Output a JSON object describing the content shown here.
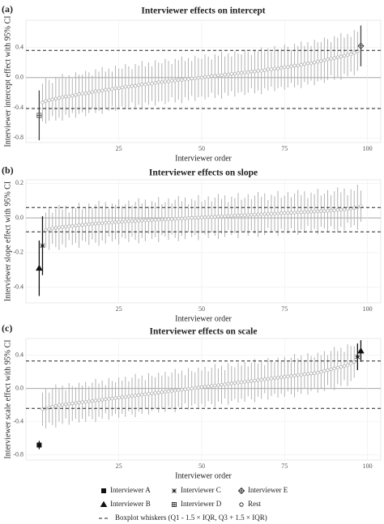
{
  "chart_data": [
    {
      "type": "errorbar",
      "label": "(a)",
      "title": "Interviewer effects on intercept",
      "xlabel": "Interviewer order",
      "ylabel": "Interviewer intercept effect with 95% CI",
      "xlim": [
        -3,
        104
      ],
      "ylim": [
        -0.86,
        0.76
      ],
      "xticks": [
        25,
        50,
        75,
        100
      ],
      "yticks": [
        -0.8,
        -0.4,
        {
          "value": 0,
          "label": "0.0"
        },
        0.4
      ],
      "grid": true,
      "hlines": [
        0.36,
        -0.41
      ],
      "series": [
        {
          "name": "Interviewer D",
          "color": "#444",
          "x": [
            1
          ],
          "values": [
            -0.5
          ],
          "errors": [
            0.33
          ]
        },
        {
          "name": "Interviewer E",
          "color": "#444",
          "x": [
            98
          ],
          "values": [
            0.42
          ],
          "errors": [
            0.27
          ]
        },
        {
          "name": "Rest",
          "color": "#b3b3b3",
          "x": [
            2,
            3,
            4,
            5,
            6,
            7,
            8,
            9,
            10,
            11,
            12,
            13,
            14,
            15,
            16,
            17,
            18,
            19,
            20,
            21,
            22,
            23,
            24,
            25,
            26,
            27,
            28,
            29,
            30,
            31,
            32,
            33,
            34,
            35,
            36,
            37,
            38,
            39,
            40,
            41,
            42,
            43,
            44,
            45,
            46,
            47,
            48,
            49,
            50,
            51,
            52,
            53,
            54,
            55,
            56,
            57,
            58,
            59,
            60,
            61,
            62,
            63,
            64,
            65,
            66,
            67,
            68,
            69,
            70,
            71,
            72,
            73,
            74,
            75,
            76,
            77,
            78,
            79,
            80,
            81,
            82,
            83,
            84,
            85,
            86,
            87,
            88,
            89,
            90,
            91,
            92,
            93,
            94,
            95,
            96,
            97
          ],
          "values": [
            -0.33,
            -0.31,
            -0.3,
            -0.29,
            -0.28,
            -0.27,
            -0.26,
            -0.25,
            -0.25,
            -0.24,
            -0.23,
            -0.22,
            -0.21,
            -0.21,
            -0.2,
            -0.19,
            -0.18,
            -0.18,
            -0.17,
            -0.16,
            -0.16,
            -0.15,
            -0.14,
            -0.14,
            -0.13,
            -0.12,
            -0.12,
            -0.11,
            -0.11,
            -0.1,
            -0.09,
            -0.09,
            -0.08,
            -0.08,
            -0.07,
            -0.06,
            -0.06,
            -0.05,
            -0.05,
            -0.04,
            -0.04,
            -0.03,
            -0.03,
            -0.02,
            -0.02,
            -0.01,
            -0.01,
            0,
            0,
            0.01,
            0.01,
            0.02,
            0.02,
            0.03,
            0.03,
            0.04,
            0.04,
            0.05,
            0.05,
            0.06,
            0.06,
            0.07,
            0.07,
            0.08,
            0.08,
            0.09,
            0.09,
            0.1,
            0.11,
            0.11,
            0.12,
            0.12,
            0.13,
            0.14,
            0.14,
            0.15,
            0.16,
            0.16,
            0.17,
            0.18,
            0.19,
            0.19,
            0.2,
            0.21,
            0.22,
            0.23,
            0.24,
            0.25,
            0.26,
            0.27,
            0.28,
            0.29,
            0.3,
            0.31,
            0.33,
            0.35
          ],
          "errors": [
            0.25,
            0.3,
            0.27,
            0.22,
            0.29,
            0.26,
            0.31,
            0.24,
            0.28,
            0.23,
            0.3,
            0.26,
            0.25,
            0.3,
            0.27,
            0.22,
            0.29,
            0.26,
            0.31,
            0.24,
            0.28,
            0.23,
            0.3,
            0.26,
            0.25,
            0.3,
            0.27,
            0.22,
            0.29,
            0.26,
            0.31,
            0.24,
            0.28,
            0.23,
            0.3,
            0.26,
            0.25,
            0.3,
            0.27,
            0.22,
            0.29,
            0.26,
            0.31,
            0.24,
            0.28,
            0.23,
            0.3,
            0.26,
            0.25,
            0.3,
            0.27,
            0.22,
            0.29,
            0.26,
            0.31,
            0.24,
            0.28,
            0.23,
            0.3,
            0.26,
            0.25,
            0.3,
            0.27,
            0.22,
            0.29,
            0.26,
            0.31,
            0.24,
            0.28,
            0.23,
            0.3,
            0.26,
            0.25,
            0.3,
            0.27,
            0.22,
            0.29,
            0.26,
            0.31,
            0.24,
            0.28,
            0.23,
            0.3,
            0.26,
            0.25,
            0.3,
            0.27,
            0.22,
            0.29,
            0.26,
            0.31,
            0.24,
            0.28,
            0.23,
            0.3,
            0.26
          ]
        }
      ]
    },
    {
      "type": "errorbar",
      "label": "(b)",
      "title": "Interviewer effects on slope",
      "xlabel": "Interviewer order",
      "ylabel": "Interviewer slope effect with 95% CI",
      "xlim": [
        -3,
        104
      ],
      "ylim": [
        -0.49,
        0.22
      ],
      "xticks": [
        25,
        50,
        75,
        100
      ],
      "yticks": [
        -0.4,
        -0.2,
        {
          "value": 0,
          "label": "0.0"
        },
        0.2
      ],
      "grid": true,
      "hlines": [
        0.06,
        -0.08
      ],
      "series": [
        {
          "name": "Interviewer B",
          "color": "#111",
          "x": [
            1
          ],
          "values": [
            -0.29
          ],
          "errors": [
            0.16
          ]
        },
        {
          "name": "Interviewer C",
          "color": "#111",
          "x": [
            2
          ],
          "values": [
            -0.16
          ],
          "errors": [
            0.17
          ]
        },
        {
          "name": "Rest",
          "color": "#b3b3b3",
          "x": [
            3,
            4,
            5,
            6,
            7,
            8,
            9,
            10,
            11,
            12,
            13,
            14,
            15,
            16,
            17,
            18,
            19,
            20,
            21,
            22,
            23,
            24,
            25,
            26,
            27,
            28,
            29,
            30,
            31,
            32,
            33,
            34,
            35,
            36,
            37,
            38,
            39,
            40,
            41,
            42,
            43,
            44,
            45,
            46,
            47,
            48,
            49,
            50,
            51,
            52,
            53,
            54,
            55,
            56,
            57,
            58,
            59,
            60,
            61,
            62,
            63,
            64,
            65,
            66,
            67,
            68,
            69,
            70,
            71,
            72,
            73,
            74,
            75,
            76,
            77,
            78,
            79,
            80,
            81,
            82,
            83,
            84,
            85,
            86,
            87,
            88,
            89,
            90,
            91,
            92,
            93,
            94,
            95,
            96,
            97,
            98
          ],
          "values": [
            -0.07,
            -0.065,
            -0.06,
            -0.058,
            -0.055,
            -0.052,
            -0.05,
            -0.048,
            -0.046,
            -0.044,
            -0.042,
            -0.04,
            -0.038,
            -0.036,
            -0.034,
            -0.033,
            -0.031,
            -0.03,
            -0.028,
            -0.027,
            -0.026,
            -0.024,
            -0.023,
            -0.022,
            -0.02,
            -0.019,
            -0.018,
            -0.017,
            -0.016,
            -0.015,
            -0.014,
            -0.013,
            -0.012,
            -0.011,
            -0.01,
            -0.009,
            -0.008,
            -0.007,
            -0.006,
            -0.005,
            -0.004,
            -0.003,
            -0.002,
            -0.001,
            0,
            0.001,
            0.002,
            0.003,
            0.004,
            0.005,
            0.006,
            0.007,
            0.008,
            0.009,
            0.01,
            0.011,
            0.012,
            0.013,
            0.014,
            0.015,
            0.016,
            0.017,
            0.018,
            0.019,
            0.02,
            0.021,
            0.022,
            0.023,
            0.024,
            0.025,
            0.026,
            0.027,
            0.028,
            0.029,
            0.03,
            0.031,
            0.032,
            0.033,
            0.034,
            0.035,
            0.036,
            0.037,
            0.038,
            0.039,
            0.04,
            0.041,
            0.042,
            0.044,
            0.046,
            0.048,
            0.05,
            0.052,
            0.055,
            0.058,
            0.062,
            0.068
          ],
          "errors": [
            0.1,
            0.12,
            0.09,
            0.11,
            0.13,
            0.1,
            0.12,
            0.08,
            0.11,
            0.1,
            0.13,
            0.09,
            0.1,
            0.12,
            0.09,
            0.11,
            0.13,
            0.1,
            0.12,
            0.08,
            0.11,
            0.1,
            0.13,
            0.09,
            0.1,
            0.12,
            0.09,
            0.11,
            0.13,
            0.1,
            0.12,
            0.08,
            0.11,
            0.1,
            0.13,
            0.09,
            0.1,
            0.12,
            0.09,
            0.11,
            0.13,
            0.1,
            0.12,
            0.08,
            0.11,
            0.1,
            0.13,
            0.09,
            0.1,
            0.12,
            0.09,
            0.11,
            0.13,
            0.1,
            0.12,
            0.08,
            0.11,
            0.1,
            0.13,
            0.09,
            0.1,
            0.12,
            0.09,
            0.11,
            0.13,
            0.1,
            0.12,
            0.08,
            0.11,
            0.1,
            0.13,
            0.09,
            0.1,
            0.12,
            0.09,
            0.11,
            0.13,
            0.1,
            0.12,
            0.08,
            0.11,
            0.1,
            0.13,
            0.09,
            0.1,
            0.12,
            0.09,
            0.11,
            0.13,
            0.1,
            0.12,
            0.08,
            0.11,
            0.1,
            0.13,
            0.09
          ]
        }
      ]
    },
    {
      "type": "errorbar",
      "label": "(c)",
      "title": "Interviewer effects on scale",
      "xlabel": "Interviewer order",
      "ylabel": "Interviewer scale effect with 95% CI",
      "xlim": [
        -3,
        104
      ],
      "ylim": [
        -0.86,
        0.6
      ],
      "xticks": [
        25,
        50,
        75,
        100
      ],
      "yticks": [
        -0.8,
        -0.4,
        {
          "value": 0,
          "label": "0.0"
        },
        0.4
      ],
      "grid": true,
      "hlines": [
        0.33,
        -0.24
      ],
      "series": [
        {
          "name": "Interviewer A",
          "color": "#111",
          "x": [
            1
          ],
          "values": [
            -0.68
          ],
          "errors": [
            0.05
          ]
        },
        {
          "name": "Interviewer C",
          "color": "#111",
          "x": [
            97
          ],
          "values": [
            0.38
          ],
          "errors": [
            0.16
          ]
        },
        {
          "name": "Interviewer B",
          "color": "#111",
          "x": [
            98
          ],
          "values": [
            0.45
          ],
          "errors": [
            0.13
          ]
        },
        {
          "name": "Rest",
          "color": "#b3b3b3",
          "x": [
            2,
            3,
            4,
            5,
            6,
            7,
            8,
            9,
            10,
            11,
            12,
            13,
            14,
            15,
            16,
            17,
            18,
            19,
            20,
            21,
            22,
            23,
            24,
            25,
            26,
            27,
            28,
            29,
            30,
            31,
            32,
            33,
            34,
            35,
            36,
            37,
            38,
            39,
            40,
            41,
            42,
            43,
            44,
            45,
            46,
            47,
            48,
            49,
            50,
            51,
            52,
            53,
            54,
            55,
            56,
            57,
            58,
            59,
            60,
            61,
            62,
            63,
            64,
            65,
            66,
            67,
            68,
            69,
            70,
            71,
            72,
            73,
            74,
            75,
            76,
            77,
            78,
            79,
            80,
            81,
            82,
            83,
            84,
            85,
            86,
            87,
            88,
            89,
            90,
            91,
            92,
            93,
            94,
            95,
            96
          ],
          "values": [
            -0.25,
            -0.24,
            -0.23,
            -0.22,
            -0.21,
            -0.2,
            -0.195,
            -0.19,
            -0.185,
            -0.18,
            -0.175,
            -0.17,
            -0.165,
            -0.16,
            -0.155,
            -0.15,
            -0.145,
            -0.14,
            -0.135,
            -0.13,
            -0.125,
            -0.12,
            -0.115,
            -0.11,
            -0.105,
            -0.1,
            -0.095,
            -0.09,
            -0.085,
            -0.08,
            -0.075,
            -0.07,
            -0.065,
            -0.06,
            -0.055,
            -0.05,
            -0.045,
            -0.04,
            -0.035,
            -0.03,
            -0.025,
            -0.02,
            -0.015,
            -0.01,
            -0.005,
            0,
            0.005,
            0.01,
            0.015,
            0.02,
            0.025,
            0.03,
            0.035,
            0.04,
            0.045,
            0.05,
            0.055,
            0.06,
            0.065,
            0.07,
            0.075,
            0.08,
            0.085,
            0.09,
            0.095,
            0.1,
            0.105,
            0.11,
            0.115,
            0.12,
            0.125,
            0.13,
            0.135,
            0.14,
            0.145,
            0.15,
            0.155,
            0.16,
            0.165,
            0.17,
            0.175,
            0.18,
            0.185,
            0.19,
            0.2,
            0.21,
            0.22,
            0.23,
            0.24,
            0.25,
            0.26,
            0.27,
            0.28,
            0.3,
            0.32
          ],
          "errors": [
            0.2,
            0.24,
            0.18,
            0.22,
            0.26,
            0.2,
            0.23,
            0.17,
            0.25,
            0.21,
            0.19,
            0.24,
            0.2,
            0.24,
            0.18,
            0.22,
            0.26,
            0.2,
            0.23,
            0.17,
            0.25,
            0.21,
            0.19,
            0.24,
            0.2,
            0.24,
            0.18,
            0.22,
            0.26,
            0.2,
            0.23,
            0.17,
            0.25,
            0.21,
            0.19,
            0.24,
            0.2,
            0.24,
            0.18,
            0.22,
            0.26,
            0.2,
            0.23,
            0.17,
            0.25,
            0.21,
            0.19,
            0.24,
            0.2,
            0.24,
            0.18,
            0.22,
            0.26,
            0.2,
            0.23,
            0.17,
            0.25,
            0.21,
            0.19,
            0.24,
            0.2,
            0.24,
            0.18,
            0.22,
            0.26,
            0.2,
            0.23,
            0.17,
            0.25,
            0.21,
            0.19,
            0.24,
            0.2,
            0.24,
            0.18,
            0.22,
            0.26,
            0.2,
            0.23,
            0.17,
            0.25,
            0.21,
            0.19,
            0.24,
            0.2,
            0.24,
            0.18,
            0.22,
            0.26,
            0.2,
            0.23,
            0.17,
            0.25,
            0.21,
            0.19
          ]
        }
      ]
    }
  ],
  "legend": {
    "items": [
      {
        "name": "Interviewer A",
        "marker": "square"
      },
      {
        "name": "Interviewer C",
        "marker": "asterisk"
      },
      {
        "name": "Interviewer E",
        "marker": "diamond-plus"
      },
      {
        "name": "Interviewer B",
        "marker": "triangle"
      },
      {
        "name": "Interviewer D",
        "marker": "square-plus"
      },
      {
        "name": "Rest",
        "marker": "circle"
      }
    ],
    "whisker_label": "Boxplot whiskers (Q1 - 1.5 × IQR, Q3 + 1.5 × IQR)"
  }
}
